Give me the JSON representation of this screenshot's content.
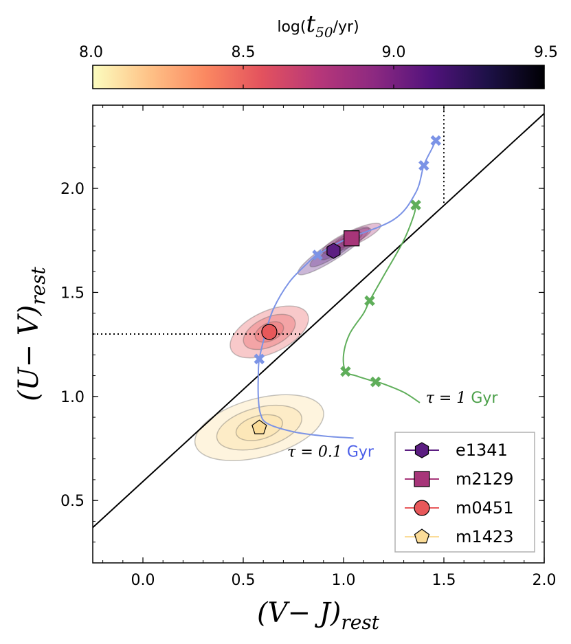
{
  "chart_data": {
    "type": "scatter",
    "colorbar": {
      "title_prefix": "log(",
      "title_var": "t",
      "title_sub": "50",
      "title_suffix": "/yr)",
      "range": [
        8.0,
        9.5
      ],
      "ticks": [
        "8.0",
        "8.5",
        "9.0",
        "9.5"
      ],
      "colormap": [
        "#fcfdbf",
        "#fec287",
        "#fb8861",
        "#e3525e",
        "#b73779",
        "#8c2981",
        "#51127c",
        "#1d1147",
        "#000004"
      ]
    },
    "xaxis": {
      "label_main": "(V− J)",
      "label_sub": "rest",
      "range": [
        -0.25,
        2.0
      ],
      "ticks": [
        "0.0",
        "0.5",
        "1.0",
        "1.5",
        "2.0"
      ],
      "tick_values": [
        0.0,
        0.5,
        1.0,
        1.5,
        2.0
      ]
    },
    "yaxis": {
      "label_main": "(U− V)",
      "label_sub": "rest",
      "range": [
        0.2,
        2.4
      ],
      "ticks": [
        "0.5",
        "1.0",
        "1.5",
        "2.0"
      ],
      "tick_values": [
        0.5,
        1.0,
        1.5,
        2.0
      ]
    },
    "selection_line": [
      [
        -0.25,
        0.37
      ],
      [
        2.0,
        2.36
      ]
    ],
    "dotted_lines": [
      {
        "points": [
          [
            -0.25,
            1.3
          ],
          [
            0.8,
            1.3
          ]
        ]
      },
      {
        "points": [
          [
            1.5,
            1.93
          ],
          [
            1.5,
            2.4
          ]
        ]
      }
    ],
    "tracks": [
      {
        "name": "tau_0.1",
        "label_prefix": "τ = 0.1 ",
        "label_suffix": "Gyr",
        "color": "#4a5ee8",
        "line_color": "#7b93e6",
        "curve": [
          [
            1.05,
            0.8
          ],
          [
            0.9,
            0.81
          ],
          [
            0.75,
            0.83
          ],
          [
            0.62,
            0.87
          ],
          [
            0.585,
            0.92
          ],
          [
            0.575,
            1.0
          ],
          [
            0.575,
            1.1
          ],
          [
            0.58,
            1.18
          ],
          [
            0.61,
            1.3
          ],
          [
            0.65,
            1.42
          ],
          [
            0.73,
            1.55
          ],
          [
            0.82,
            1.64
          ],
          [
            0.87,
            1.68
          ],
          [
            1.0,
            1.75
          ],
          [
            1.25,
            1.85
          ],
          [
            1.36,
            1.98
          ],
          [
            1.4,
            2.11
          ],
          [
            1.44,
            2.19
          ],
          [
            1.46,
            2.23
          ]
        ],
        "markers": [
          [
            0.58,
            1.18
          ],
          [
            0.87,
            1.68
          ],
          [
            1.4,
            2.11
          ],
          [
            1.46,
            2.23
          ]
        ],
        "label_pos": [
          0.72,
          0.71
        ]
      },
      {
        "name": "tau_1",
        "label_prefix": "τ = 1 ",
        "label_suffix": "Gyr",
        "color": "#4a9f48",
        "line_color": "#5fae5a",
        "curve": [
          [
            1.38,
            0.97
          ],
          [
            1.3,
            1.02
          ],
          [
            1.2,
            1.06
          ],
          [
            1.16,
            1.07
          ],
          [
            1.06,
            1.1
          ],
          [
            1.01,
            1.12
          ],
          [
            1.0,
            1.2
          ],
          [
            1.03,
            1.3
          ],
          [
            1.1,
            1.4
          ],
          [
            1.13,
            1.46
          ],
          [
            1.2,
            1.58
          ],
          [
            1.3,
            1.75
          ],
          [
            1.35,
            1.87
          ],
          [
            1.36,
            1.92
          ]
        ],
        "markers": [
          [
            1.01,
            1.12
          ],
          [
            1.16,
            1.07
          ],
          [
            1.13,
            1.46
          ],
          [
            1.36,
            1.92
          ]
        ],
        "label_pos": [
          1.41,
          0.97
        ]
      }
    ],
    "galaxies": [
      {
        "name": "e1341",
        "marker": "hexagon",
        "x": 0.95,
        "y": 1.7,
        "color": "#5c1e82",
        "ellipse": {
          "rx": 0.21,
          "ry": 0.03,
          "angle_deg": 33
        }
      },
      {
        "name": "m2129",
        "marker": "square",
        "x": 1.04,
        "y": 1.76,
        "color": "#a73579",
        "ellipse": {
          "rx": 0.16,
          "ry": 0.025,
          "angle_deg": 25
        }
      },
      {
        "name": "m0451",
        "marker": "circle",
        "x": 0.63,
        "y": 1.31,
        "color": "#e8585a",
        "ellipse": {
          "rx": 0.21,
          "ry": 0.09,
          "angle_deg": 25
        }
      },
      {
        "name": "m1423",
        "marker": "pentagon",
        "x": 0.58,
        "y": 0.85,
        "color": "#fbdc98",
        "ellipse": {
          "rx": 0.33,
          "ry": 0.13,
          "angle_deg": 15
        }
      }
    ],
    "legend": {
      "position": "lower-right"
    }
  }
}
